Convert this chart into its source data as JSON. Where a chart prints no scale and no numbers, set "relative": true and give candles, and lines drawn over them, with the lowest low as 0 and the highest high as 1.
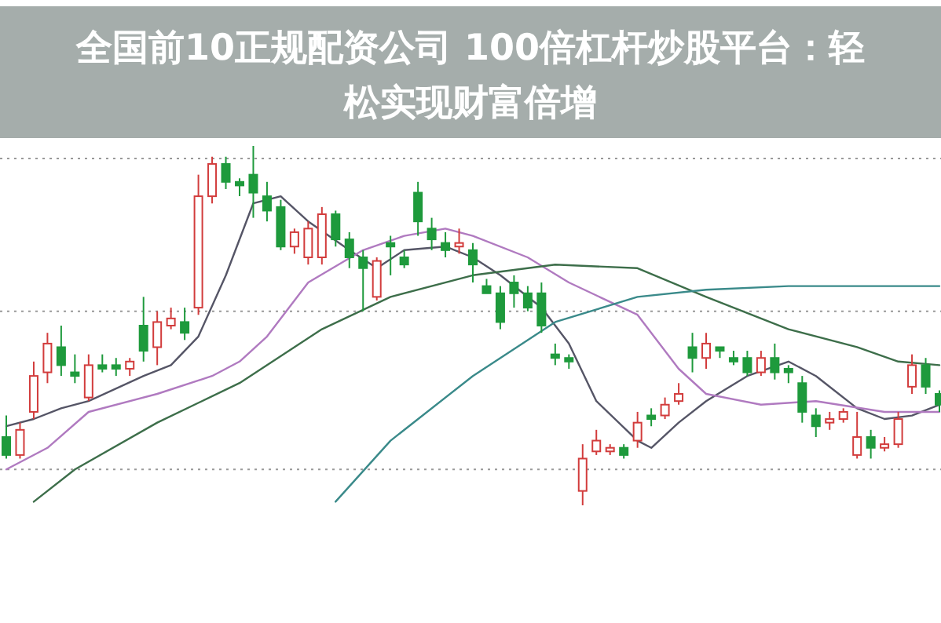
{
  "chart_data": {
    "type": "candlestick",
    "title": "全国前10正规配资公司 100倍杠杆炒股平台：轻松实现财富倍增",
    "relative": true,
    "categories": [
      null,
      null,
      null,
      null,
      null,
      null,
      null,
      null,
      null,
      null,
      null,
      null,
      null,
      null,
      null,
      null,
      null,
      null,
      null,
      null,
      null,
      null,
      null,
      null,
      null,
      null,
      null,
      null,
      null,
      null,
      null,
      null,
      null,
      null,
      null,
      null,
      null,
      null,
      null,
      null,
      null,
      null,
      null,
      null,
      null,
      null,
      null,
      null,
      null,
      null,
      null,
      null,
      null,
      null,
      null,
      null,
      null,
      null,
      null,
      null,
      null,
      null,
      null,
      null,
      null,
      null,
      null,
      null,
      null
    ],
    "ohlc": [
      [
        0.19,
        0.25,
        0.13,
        0.14
      ],
      [
        0.14,
        0.23,
        0.13,
        0.21
      ],
      [
        0.26,
        0.4,
        0.24,
        0.36
      ],
      [
        0.37,
        0.48,
        0.34,
        0.45
      ],
      [
        0.44,
        0.5,
        0.36,
        0.39
      ],
      [
        0.37,
        0.42,
        0.34,
        0.36
      ],
      [
        0.3,
        0.42,
        0.29,
        0.39
      ],
      [
        0.39,
        0.42,
        0.37,
        0.38
      ],
      [
        0.39,
        0.41,
        0.36,
        0.38
      ],
      [
        0.38,
        0.41,
        0.36,
        0.4
      ],
      [
        0.5,
        0.58,
        0.4,
        0.43
      ],
      [
        0.44,
        0.54,
        0.39,
        0.51
      ],
      [
        0.5,
        0.55,
        0.49,
        0.52
      ],
      [
        0.51,
        0.55,
        0.46,
        0.48
      ],
      [
        0.55,
        0.92,
        0.53,
        0.86
      ],
      [
        0.86,
        0.97,
        0.84,
        0.95
      ],
      [
        0.95,
        0.97,
        0.88,
        0.9
      ],
      [
        0.9,
        0.91,
        0.86,
        0.89
      ],
      [
        0.92,
        1.0,
        0.8,
        0.87
      ],
      [
        0.86,
        0.9,
        0.79,
        0.82
      ],
      [
        0.83,
        0.85,
        0.71,
        0.72
      ],
      [
        0.72,
        0.77,
        0.7,
        0.76
      ],
      [
        0.69,
        0.79,
        0.67,
        0.77
      ],
      [
        0.69,
        0.83,
        0.67,
        0.81
      ],
      [
        0.81,
        0.82,
        0.72,
        0.74
      ],
      [
        0.74,
        0.76,
        0.66,
        0.69
      ],
      [
        0.69,
        0.71,
        0.54,
        0.66
      ],
      [
        0.58,
        0.69,
        0.57,
        0.68
      ],
      [
        0.73,
        0.75,
        0.64,
        0.72
      ],
      [
        0.69,
        0.71,
        0.66,
        0.67
      ],
      [
        0.87,
        0.9,
        0.75,
        0.79
      ],
      [
        0.77,
        0.8,
        0.71,
        0.74
      ],
      [
        0.73,
        0.76,
        0.69,
        0.71
      ],
      [
        0.72,
        0.77,
        0.7,
        0.73
      ],
      [
        0.71,
        0.73,
        0.62,
        0.67
      ],
      [
        0.61,
        0.63,
        0.59,
        0.59
      ],
      [
        0.59,
        0.61,
        0.49,
        0.51
      ],
      [
        0.62,
        0.64,
        0.55,
        0.59
      ],
      [
        0.59,
        0.61,
        0.54,
        0.55
      ],
      [
        0.59,
        0.62,
        0.48,
        0.5
      ],
      [
        0.42,
        0.45,
        0.39,
        0.41
      ],
      [
        0.41,
        0.42,
        0.38,
        0.4
      ],
      [
        0.04,
        0.17,
        0.0,
        0.13
      ],
      [
        0.15,
        0.21,
        0.14,
        0.18
      ],
      [
        0.15,
        0.17,
        0.14,
        0.16
      ],
      [
        0.16,
        0.17,
        0.13,
        0.14
      ],
      [
        0.18,
        0.26,
        0.16,
        0.23
      ],
      [
        0.25,
        0.27,
        0.22,
        0.24
      ],
      [
        0.25,
        0.3,
        0.24,
        0.28
      ],
      [
        0.29,
        0.34,
        0.28,
        0.31
      ],
      [
        0.44,
        0.48,
        0.37,
        0.41
      ],
      [
        0.41,
        0.48,
        0.38,
        0.45
      ],
      [
        0.44,
        0.44,
        0.41,
        0.43
      ],
      [
        0.41,
        0.43,
        0.39,
        0.4
      ],
      [
        0.41,
        0.43,
        0.36,
        0.37
      ],
      [
        0.37,
        0.43,
        0.36,
        0.41
      ],
      [
        0.41,
        0.45,
        0.35,
        0.37
      ],
      [
        0.38,
        0.39,
        0.34,
        0.37
      ],
      [
        0.34,
        0.36,
        0.23,
        0.26
      ],
      [
        0.25,
        0.27,
        0.19,
        0.22
      ],
      [
        0.23,
        0.26,
        0.21,
        0.24
      ],
      [
        0.24,
        0.27,
        0.23,
        0.26
      ],
      [
        0.14,
        0.26,
        0.13,
        0.19
      ],
      [
        0.19,
        0.21,
        0.13,
        0.16
      ],
      [
        0.16,
        0.19,
        0.15,
        0.17
      ],
      [
        0.17,
        0.26,
        0.16,
        0.24
      ],
      [
        0.33,
        0.42,
        0.31,
        0.39
      ],
      [
        0.39,
        0.41,
        0.31,
        0.33
      ],
      [
        0.31,
        0.32,
        0.26,
        0.28
      ]
    ],
    "colors": [
      "#1e9a3c",
      "#d23c3c",
      "#d23c3c",
      "#d23c3c",
      "#1e9a3c",
      "#1e9a3c",
      "#d23c3c",
      "#1e9a3c",
      "#1e9a3c",
      "#d23c3c",
      "#1e9a3c",
      "#d23c3c",
      "#d23c3c",
      "#1e9a3c",
      "#d23c3c",
      "#d23c3c",
      "#1e9a3c",
      "#1e9a3c",
      "#1e9a3c",
      "#1e9a3c",
      "#1e9a3c",
      "#d23c3c",
      "#d23c3c",
      "#d23c3c",
      "#1e9a3c",
      "#1e9a3c",
      "#1e9a3c",
      "#d23c3c",
      "#1e9a3c",
      "#1e9a3c",
      "#1e9a3c",
      "#1e9a3c",
      "#1e9a3c",
      "#d23c3c",
      "#1e9a3c",
      "#1e9a3c",
      "#1e9a3c",
      "#1e9a3c",
      "#1e9a3c",
      "#1e9a3c",
      "#1e9a3c",
      "#1e9a3c",
      "#d23c3c",
      "#d23c3c",
      "#d23c3c",
      "#1e9a3c",
      "#d23c3c",
      "#1e9a3c",
      "#d23c3c",
      "#d23c3c",
      "#1e9a3c",
      "#d23c3c",
      "#1e9a3c",
      "#1e9a3c",
      "#1e9a3c",
      "#d23c3c",
      "#1e9a3c",
      "#1e9a3c",
      "#1e9a3c",
      "#1e9a3c",
      "#d23c3c",
      "#d23c3c",
      "#d23c3c",
      "#1e9a3c",
      "#d23c3c",
      "#d23c3c",
      "#d23c3c",
      "#1e9a3c",
      "#1e9a3c"
    ],
    "series": [
      {
        "type": "line",
        "color": "#555566",
        "values": [
          0.22,
          null,
          0.24,
          null,
          0.27,
          null,
          0.29,
          null,
          null,
          null,
          0.36,
          null,
          0.39,
          null,
          0.47,
          null,
          0.64,
          null,
          0.84,
          null,
          0.86,
          null,
          0.79,
          null,
          null,
          0.71,
          null,
          0.66,
          null,
          0.71,
          null,
          null,
          0.72,
          null,
          0.69,
          null,
          0.64,
          null,
          null,
          0.55,
          null,
          0.45,
          null,
          0.29,
          null,
          null,
          0.18,
          0.16,
          null,
          0.23,
          null,
          0.29,
          null,
          null,
          0.36,
          null,
          null,
          0.4,
          null,
          0.36,
          null,
          null,
          0.27,
          null,
          0.24,
          null,
          0.25,
          null,
          0.28
        ]
      },
      {
        "type": "line",
        "color": "#b07ac0",
        "values": [
          0.1,
          null,
          null,
          0.16,
          null,
          null,
          0.26,
          null,
          null,
          null,
          null,
          0.31,
          null,
          null,
          null,
          0.36,
          null,
          0.4,
          null,
          0.47,
          null,
          null,
          0.62,
          null,
          null,
          null,
          0.71,
          null,
          null,
          0.75,
          null,
          null,
          0.77,
          null,
          0.75,
          null,
          null,
          null,
          0.69,
          null,
          null,
          0.62,
          null,
          null,
          null,
          null,
          0.53,
          null,
          null,
          0.38,
          null,
          0.31,
          null,
          null,
          null,
          0.28,
          null,
          null,
          null,
          0.29,
          null,
          null,
          null,
          null,
          0.26,
          null,
          null,
          null,
          0.26
        ]
      },
      {
        "type": "line",
        "color": "#3d6e4a",
        "values": [
          null,
          null,
          0.01,
          null,
          null,
          0.1,
          null,
          null,
          null,
          null,
          null,
          0.23,
          null,
          null,
          null,
          null,
          null,
          0.34,
          null,
          null,
          null,
          null,
          null,
          0.49,
          null,
          null,
          null,
          null,
          0.58,
          null,
          null,
          null,
          null,
          null,
          0.64,
          null,
          null,
          null,
          null,
          null,
          0.67,
          null,
          null,
          null,
          null,
          null,
          0.66,
          null,
          null,
          null,
          null,
          0.58,
          null,
          null,
          null,
          null,
          null,
          0.49,
          null,
          null,
          null,
          null,
          0.44,
          null,
          null,
          0.4,
          null,
          null,
          0.39
        ]
      },
      {
        "type": "line",
        "color": "#3a8a8a",
        "values": [
          null,
          null,
          null,
          null,
          null,
          null,
          null,
          null,
          null,
          null,
          null,
          null,
          null,
          null,
          null,
          null,
          null,
          null,
          null,
          null,
          null,
          null,
          null,
          null,
          0.01,
          null,
          null,
          null,
          0.18,
          null,
          null,
          null,
          null,
          null,
          0.36,
          null,
          null,
          null,
          null,
          null,
          0.51,
          null,
          null,
          null,
          null,
          null,
          0.58,
          null,
          null,
          null,
          null,
          0.6,
          null,
          null,
          null,
          null,
          null,
          0.61,
          null,
          null,
          null,
          null,
          null,
          0.61,
          null,
          null,
          null,
          null,
          0.61
        ]
      }
    ],
    "ref_lines": [
      {
        "axis": "y",
        "value": 0.965,
        "line_style": "dotted",
        "color": "#999999"
      },
      {
        "axis": "y",
        "value": 0.54,
        "line_style": "dotted",
        "color": "#999999"
      },
      {
        "axis": "y",
        "value": 0.1,
        "line_style": "dotted",
        "color": "#999999"
      }
    ]
  }
}
